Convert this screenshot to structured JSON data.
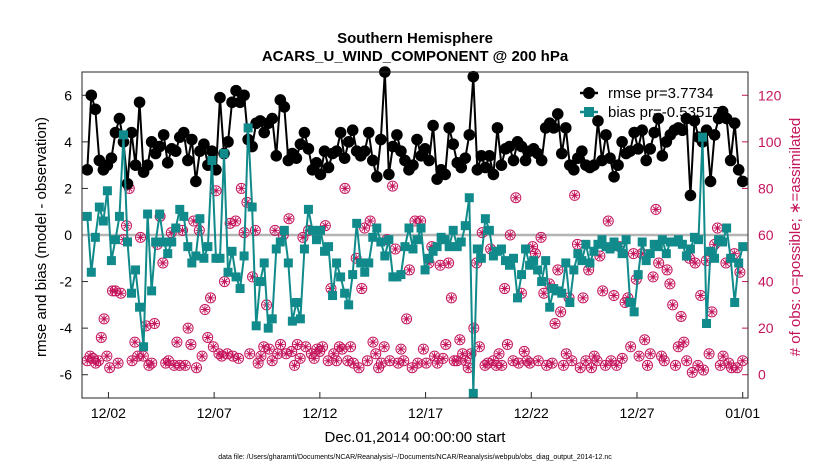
{
  "chart_data": {
    "type": "line",
    "title": "Southern Hemisphere",
    "subtitle": "ACARS_U_WIND_COMPONENT @ 200 hPa",
    "xlabel": "Dec.01,2014 00:00:00 start",
    "ylabel": "rmse and bias (model - observation)",
    "ylabel_right": "# of obs: o=possible; ∗=assimilated",
    "footnote": "data file: /Users/gharamti/Documents/NCAR/Reanalysis/~/Documents/NCAR/Reanalysis/webpub/obs_diag_output_2014-12.nc",
    "x_ticks": [
      {
        "label": "12/02",
        "day": 2
      },
      {
        "label": "12/07",
        "day": 7
      },
      {
        "label": "12/12",
        "day": 12
      },
      {
        "label": "12/17",
        "day": 17
      },
      {
        "label": "12/22",
        "day": 22
      },
      {
        "label": "12/27",
        "day": 27
      },
      {
        "label": "01/01",
        "day": 32
      }
    ],
    "xlim": [
      0.75,
      32.25
    ],
    "ylim": [
      -7,
      7
    ],
    "ylim_right": [
      -10,
      130
    ],
    "y_ticks": [
      -6,
      -4,
      -2,
      0,
      2,
      4,
      6
    ],
    "y_ticks_right": [
      0,
      20,
      40,
      60,
      80,
      100,
      120
    ],
    "colors": {
      "rmse": "#000000",
      "bias": "#108a8a",
      "obs": "#c4145c",
      "zero": "#b4b4b4"
    },
    "series": [
      {
        "name": "rmse pr=3.7734",
        "values": [
          2.8,
          6.0,
          5.4,
          3.2,
          2.8,
          3.0,
          3.3,
          4.4,
          5.0,
          4.0,
          2.2,
          4.4,
          3.0,
          5.7,
          2.7,
          3.0,
          4.0,
          3.5,
          3.8,
          4.3,
          3.1,
          3.7,
          3.6,
          4.2,
          4.4,
          3.2,
          4.1,
          2.3,
          3.6,
          3.9,
          3.0,
          3.6,
          2.8,
          5.9,
          3.5,
          4.0,
          5.7,
          6.2,
          5.7,
          6.0,
          4.1,
          3.8,
          4.8,
          4.9,
          4.4,
          4.8,
          5.0,
          3.4,
          5.8,
          5.5,
          3.2,
          3.5,
          3.3,
          3.9,
          4.4,
          3.7,
          2.8,
          3.1,
          2.6,
          3.6,
          2.9,
          3.5,
          3.6,
          4.4,
          3.3,
          4.0,
          4.5,
          3.6,
          3.4,
          3.6,
          4.4,
          3.2,
          2.5,
          4.1,
          7.0,
          2.6,
          3.8,
          4.3,
          3.6,
          3.2,
          2.8,
          3.0,
          4.1,
          3.4,
          3.7,
          3.2,
          4.7,
          2.4,
          2.8,
          2.6,
          4.6,
          3.9,
          3.1,
          2.9,
          3.3,
          4.3,
          6.8,
          2.8,
          3.4,
          2.9,
          3.4,
          2.6,
          4.6,
          3.0,
          3.7,
          3.8,
          3.2,
          4.0,
          3.8,
          3.2,
          3.6,
          3.7,
          3.5,
          3.2,
          4.6,
          4.8,
          4.6,
          5.2,
          3.5,
          4.6,
          3.0,
          2.8
        ],
        "values2": [
          3.3,
          3.6,
          3.0,
          2.9,
          3.0,
          4.9,
          3.2,
          4.3,
          3.3,
          2.5,
          3.0,
          4.0,
          3.5,
          3.6,
          4.4,
          3.7,
          4.5,
          3.2,
          3.7,
          4.4,
          5.0,
          3.4,
          4.0,
          4.3,
          4.5,
          4.6,
          4.5,
          5.0,
          1.7,
          4.9,
          4.2,
          4.0,
          4.5,
          2.3,
          4.3,
          5.0,
          5.3,
          5.0,
          3.2,
          4.8,
          2.8,
          2.3
        ],
        "note": "rmse values are one list split across values and values2"
      },
      {
        "name": "bias pr=-0.53517",
        "values": [
          0.8,
          -1.6,
          -0.1,
          1.2,
          0.6,
          1.9,
          -1.1,
          -0.2,
          0.8,
          4.3,
          -0.3,
          -2.5,
          -1.5,
          -3.1,
          -4.8,
          0.9,
          -2.4,
          -0.3,
          0.9,
          -0.3,
          -0.8,
          -0.3,
          0.3,
          1.1,
          0.8,
          -0.5,
          -1.2,
          -0.9,
          0.7,
          -1.0,
          -0.5,
          3.2,
          -1.0,
          -1.0,
          3.5,
          -1.6,
          -0.7,
          -1.8,
          -2.3,
          -0.9,
          4.6,
          1.2,
          -3.9,
          -2.0,
          -1.2,
          -4.0,
          -3.6,
          -0.6,
          -0.3,
          0.2,
          -1.2,
          -3.7,
          -2.9,
          -3.6,
          -0.6,
          1.1,
          0.2,
          -0.2,
          0.2,
          -0.7,
          -0.5,
          -2.6,
          -1.2,
          -1.8,
          -2.5,
          -3.0,
          -1.7,
          0.5,
          -1.2,
          -1.6,
          -1.2,
          -0.1,
          0.3,
          -0.3,
          -0.9,
          -0.2,
          -1.8,
          -1.8,
          -1.7,
          -0.5,
          0.3,
          -0.6,
          -0.2,
          0.3,
          -1.5,
          -1.0,
          -0.7,
          -0.5,
          -0.1,
          -0.2,
          -0.5,
          0.2,
          -0.5,
          -0.3,
          0.4,
          1.6,
          -6.8,
          -0.6,
          -1.0,
          0.7,
          0.2,
          -0.9,
          -0.7,
          -0.6,
          -1.1,
          -1.3,
          -1.0,
          -2.7,
          -1.7,
          -0.6,
          -1.3,
          -1.1,
          -1.5,
          -2.0,
          -1.1,
          -3.1,
          -2.3,
          -2.4,
          -2.5,
          -1.2,
          -2.9,
          -1.5
        ],
        "values2": [
          -0.8,
          -1.1,
          -0.4,
          -1.2,
          -0.7,
          -0.4,
          -0.2,
          -0.5,
          -0.6,
          -0.3,
          -0.5,
          -0.8,
          -0.2,
          -2.9,
          -3.3,
          -1.7,
          -0.3,
          -1.1,
          -0.8,
          -0.4,
          -0.5,
          -0.2,
          -0.8,
          -0.3,
          -0.3,
          -0.2,
          -0.4,
          -0.9,
          -0.6,
          -0.1,
          -0.2,
          4.2,
          -3.8,
          -0.7,
          -1.0,
          -0.2,
          -0.3,
          0.3,
          -1.0,
          -2.9,
          -1.2,
          -0.5
        ],
        "note2": "bias values are one list split across values and values2"
      },
      {
        "name": "possible",
        "values": [
          6,
          8,
          7,
          5,
          6,
          16,
          24,
          8,
          3,
          36,
          36,
          5,
          35,
          58,
          64,
          80,
          6,
          14,
          8,
          59,
          8,
          21,
          4,
          5,
          22,
          56,
          68,
          48,
          5,
          6,
          61,
          4,
          14,
          4,
          62,
          4,
          20,
          13,
          66,
          3,
          62,
          8,
          28,
          16,
          33,
          12,
          79,
          9,
          8,
          40,
          9,
          65,
          8,
          66,
          7,
          80,
          61,
          74,
          9,
          42,
          62,
          5,
          8,
          12,
          30,
          11,
          6,
          62,
          9,
          13,
          60,
          9,
          67,
          10,
          4,
          13,
          7,
          59,
          12,
          62,
          9,
          7,
          11,
          10,
          12,
          64,
          6,
          37,
          9,
          6,
          12,
          11,
          80,
          6,
          12,
          5,
          50,
          3,
          37,
          63,
          6,
          66,
          14,
          9,
          3,
          5,
          12,
          58,
          6,
          81,
          54,
          5,
          11,
          6,
          24,
          45,
          3,
          66,
          5,
          66,
          11,
          5,
          48,
          55,
          8,
          5,
          47,
          7,
          13,
          48,
          33,
          6,
          6,
          15,
          9,
          6,
          3,
          9,
          20,
          48,
          12,
          61,
          4,
          5,
          54,
          6,
          4,
          9,
          4,
          37,
          13,
          60,
          6,
          76,
          5,
          35,
          10,
          6,
          5,
          55,
          52,
          6,
          59,
          35,
          4,
          39,
          5,
          22,
          45,
          27,
          4,
          9,
          33,
          6,
          77,
          56,
          3,
          33,
          6,
          45,
          3,
          8,
          6,
          51,
          36,
          4,
          66,
          6,
          34,
          4,
          55,
          7,
          31,
          33,
          12,
          52,
          41,
          8,
          52,
          15,
          4,
          9,
          42,
          71,
          48,
          8,
          6,
          45,
          39,
          30,
          4,
          12,
          25,
          14,
          6,
          50,
          1,
          48,
          4,
          34,
          2,
          49,
          9,
          27,
          56,
          63,
          4,
          8,
          48,
          5,
          3,
          52,
          3,
          44,
          6
        ]
      }
    ]
  }
}
